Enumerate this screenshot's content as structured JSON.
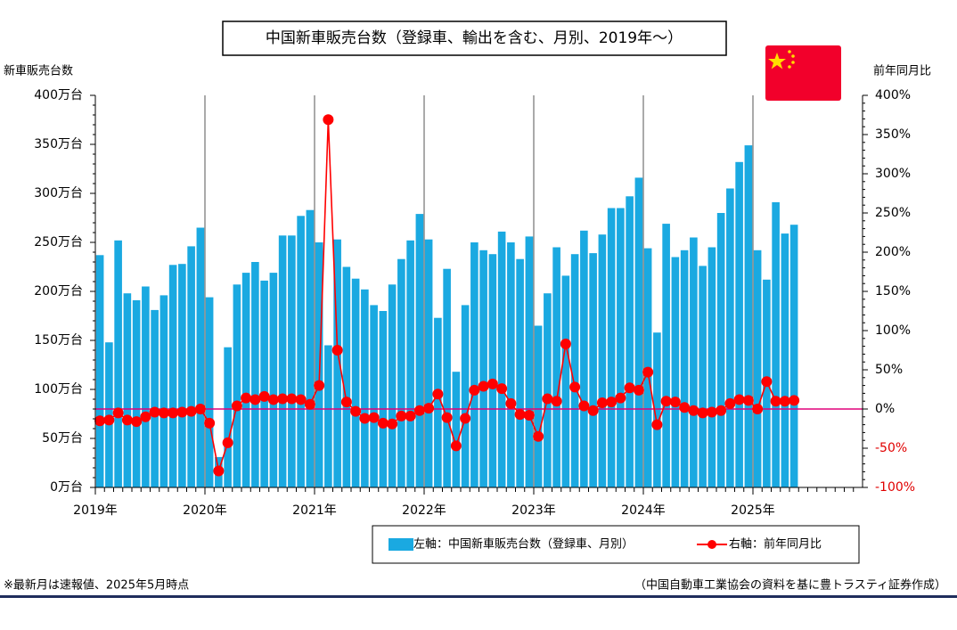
{
  "chart_data": {
    "type": "bar-line",
    "title": "中国新車販売台数（登録車、輸出を含む、月別、2019年～）",
    "y_axis_title": "新車販売台数",
    "y2_axis_title": "前年同月比",
    "note": "※最新月は速報値、2025年5月時点",
    "source": "（中国自動車工業協会の資料を基に豊トラスティ証券作成）",
    "categories": [
      "2019年",
      null,
      null,
      null,
      null,
      null,
      null,
      null,
      null,
      null,
      null,
      null,
      "2020年",
      null,
      null,
      null,
      null,
      null,
      null,
      null,
      null,
      null,
      null,
      null,
      "2021年",
      null,
      null,
      null,
      null,
      null,
      null,
      null,
      null,
      null,
      null,
      null,
      "2022年",
      null,
      null,
      null,
      null,
      null,
      null,
      null,
      null,
      null,
      null,
      null,
      "2023年",
      null,
      null,
      null,
      null,
      null,
      null,
      null,
      null,
      null,
      null,
      null,
      "2024年",
      null,
      null,
      null,
      null,
      null,
      null,
      null,
      null,
      null,
      null,
      null,
      "2025年",
      null,
      null,
      null,
      null,
      null,
      null,
      null,
      null,
      null,
      null,
      null
    ],
    "series": [
      {
        "name": "左軸：中国新車販売台数（登録車、月別）",
        "type": "bar",
        "axis": "y",
        "color": "#1aa9e1",
        "values": [
          237,
          148,
          252,
          198,
          191,
          205,
          181,
          196,
          227,
          228,
          246,
          265,
          194,
          31,
          143,
          207,
          219,
          230,
          211,
          219,
          257,
          257,
          277,
          283,
          250,
          145,
          253,
          225,
          213,
          202,
          186,
          180,
          207,
          233,
          252,
          279,
          253,
          173,
          223,
          118,
          186,
          250,
          242,
          238,
          261,
          250,
          233,
          256,
          165,
          198,
          245,
          216,
          238,
          262,
          239,
          258,
          285,
          285,
          297,
          316,
          244,
          158,
          269,
          235,
          242,
          255,
          226,
          245,
          280,
          305,
          332,
          349,
          242,
          212,
          291,
          259,
          268,
          null,
          null,
          null,
          null,
          null,
          null,
          null
        ]
      },
      {
        "name": "右軸：前年同月比",
        "type": "line",
        "axis": "y2",
        "color": "#ff0000",
        "values": [
          -15,
          -14,
          -5,
          -14,
          -16,
          -10,
          -4,
          -5,
          -5,
          -4,
          -3,
          0,
          -18,
          -79,
          -43,
          4,
          14,
          12,
          16,
          12,
          13,
          13,
          12,
          6,
          30,
          369,
          75,
          9,
          -3,
          -12,
          -11,
          -18,
          -19,
          -9,
          -9,
          -2,
          1,
          19,
          -11,
          -47,
          -12,
          24,
          29,
          32,
          26,
          7,
          -7,
          -8,
          -35,
          13,
          10,
          83,
          28,
          4,
          -2,
          8,
          9,
          14,
          27,
          24,
          47,
          -20,
          10,
          9,
          2,
          -2,
          -5,
          -4,
          -2,
          7,
          12,
          11,
          0,
          35,
          10,
          10,
          11,
          null,
          null,
          null,
          null,
          null,
          null,
          null
        ]
      }
    ],
    "ylim": [
      0,
      400
    ],
    "yticks": [
      {
        "value": 0,
        "label": "0万台"
      },
      {
        "value": 50,
        "label": "50万台"
      },
      {
        "value": 100,
        "label": "100万台"
      },
      {
        "value": 150,
        "label": "150万台"
      },
      {
        "value": 200,
        "label": "200万台"
      },
      {
        "value": 250,
        "label": "250万台"
      },
      {
        "value": 300,
        "label": "300万台"
      },
      {
        "value": 350,
        "label": "350万台"
      },
      {
        "value": 400,
        "label": "400万台"
      }
    ],
    "y2lim": [
      -100,
      400
    ],
    "y2ticks": [
      {
        "value": -100,
        "label": "-100%"
      },
      {
        "value": -50,
        "label": "-50%"
      },
      {
        "value": 0,
        "label": "0%"
      },
      {
        "value": 50,
        "label": "50%"
      },
      {
        "value": 100,
        "label": "100%"
      },
      {
        "value": 150,
        "label": "150%"
      },
      {
        "value": 200,
        "label": "200%"
      },
      {
        "value": 250,
        "label": "250%"
      },
      {
        "value": 300,
        "label": "300%"
      },
      {
        "value": 350,
        "label": "350%"
      },
      {
        "value": 400,
        "label": "400%"
      }
    ],
    "reference_line": {
      "axis": "y2",
      "value": 0,
      "color": "#e0007a"
    }
  }
}
